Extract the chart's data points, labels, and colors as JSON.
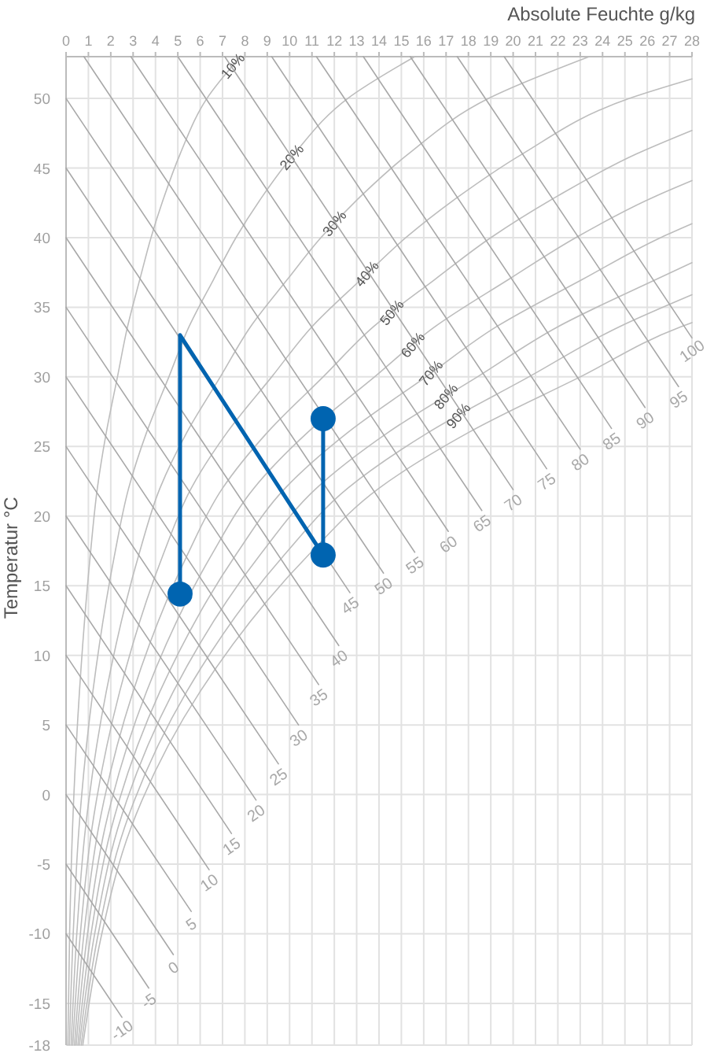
{
  "chart_data": {
    "type": "line",
    "xlabel": "Absolute Feuchte g/kg",
    "ylabel": "Temperatur °C",
    "xlim": [
      0,
      28
    ],
    "ylim": [
      -18,
      53
    ],
    "xticks": [
      0,
      1,
      2,
      3,
      4,
      5,
      6,
      7,
      8,
      9,
      10,
      11,
      12,
      13,
      14,
      15,
      16,
      17,
      18,
      19,
      20,
      21,
      22,
      23,
      24,
      25,
      26,
      27,
      28
    ],
    "yticks": [
      -18,
      -15,
      -10,
      -5,
      0,
      5,
      10,
      15,
      20,
      25,
      30,
      35,
      40,
      45,
      50
    ],
    "grid": true,
    "series": [
      {
        "name": "10%",
        "color": "#bdbdbd",
        "x": [
          0.08,
          0.16,
          0.29,
          0.6,
          1.09,
          1.4,
          1.8,
          2.3,
          2.75,
          3.3,
          3.8,
          4.4,
          5.1,
          6.3,
          7.8
        ],
        "values": [
          -18,
          -10,
          -2.4,
          7.4,
          17.3,
          22,
          26,
          30,
          33.6,
          37,
          40,
          43,
          46,
          50,
          53
        ]
      },
      {
        "name": "20%",
        "color": "#bdbdbd",
        "x": [
          0.15,
          0.32,
          0.58,
          1.2,
          2.18,
          2.8,
          3.6,
          4.6,
          5.5,
          6.6,
          7.6,
          8.8,
          10.2,
          12.6,
          15.6
        ],
        "values": [
          -18,
          -10,
          -2.4,
          7.4,
          17.3,
          22,
          26,
          30,
          33.6,
          37,
          40,
          43,
          46,
          50,
          53
        ]
      },
      {
        "name": "30%",
        "color": "#bdbdbd",
        "x": [
          0.23,
          0.48,
          0.87,
          1.8,
          3.27,
          4.2,
          5.4,
          6.9,
          8.25,
          9.9,
          11.4,
          13.2,
          15.3,
          18.9,
          23.4
        ],
        "values": [
          -18,
          -10,
          -2.4,
          7.4,
          17.3,
          22,
          26,
          30,
          33.6,
          37,
          40,
          43,
          46,
          50,
          53
        ]
      },
      {
        "name": "40%",
        "color": "#bdbdbd",
        "x": [
          0.3,
          0.64,
          1.16,
          2.4,
          4.36,
          5.6,
          7.2,
          9.2,
          11,
          13.2,
          15.2,
          17.6,
          20.4,
          25.2,
          28
        ],
        "values": [
          -18,
          -10,
          -2.4,
          7.4,
          17.3,
          22,
          26,
          30,
          33.6,
          37,
          40,
          43,
          46,
          50,
          51.4
        ]
      },
      {
        "name": "50%",
        "color": "#bdbdbd",
        "x": [
          0.38,
          0.8,
          1.45,
          3,
          5.45,
          7,
          9,
          11.5,
          13.75,
          16.5,
          19,
          22,
          25.5,
          28
        ],
        "values": [
          -18,
          -10,
          -2.4,
          7.4,
          17.3,
          22,
          26,
          30,
          33.6,
          37,
          40,
          43,
          46,
          47.7
        ]
      },
      {
        "name": "60%",
        "color": "#bdbdbd",
        "x": [
          0.45,
          0.96,
          1.74,
          3.6,
          6.54,
          8.4,
          10.8,
          13.8,
          16.5,
          19.8,
          22.8,
          26.4,
          28
        ],
        "values": [
          -18,
          -10,
          -2.4,
          7.4,
          17.3,
          22,
          26,
          30,
          33.6,
          37,
          40,
          43,
          44.1
        ]
      },
      {
        "name": "70%",
        "color": "#bdbdbd",
        "x": [
          0.53,
          1.12,
          2.03,
          4.2,
          7.63,
          9.8,
          12.6,
          16.1,
          19.25,
          23.1,
          26.6,
          28
        ],
        "values": [
          -18,
          -10,
          -2.4,
          7.4,
          17.3,
          22,
          26,
          30,
          33.6,
          37,
          40,
          41
        ]
      },
      {
        "name": "80%",
        "color": "#bdbdbd",
        "x": [
          0.6,
          1.28,
          2.32,
          4.8,
          8.72,
          11.2,
          14.4,
          18.4,
          22,
          26.4,
          28
        ],
        "values": [
          -18,
          -10,
          -2.4,
          7.4,
          17.3,
          22,
          26,
          30,
          33.6,
          37,
          38.2
        ]
      },
      {
        "name": "90%",
        "color": "#bdbdbd",
        "x": [
          0.68,
          1.44,
          2.61,
          5.4,
          9.81,
          12.6,
          16.2,
          20.7,
          24.75,
          28
        ],
        "values": [
          -18,
          -10,
          -2.4,
          7.4,
          17.3,
          22,
          26,
          30,
          33.6,
          35.9
        ]
      },
      {
        "color": "#bdbdbd",
        "x": [
          0.75,
          1.6,
          2.9,
          6,
          10.9,
          14,
          18,
          23,
          27.5,
          28
        ],
        "values": [
          -18,
          -10,
          -2.4,
          7.4,
          17.3,
          22,
          26,
          30,
          33.6,
          33.9
        ]
      },
      {
        "name": "-10",
        "color": "#a8a8a8",
        "x": [
          0,
          2.5
        ],
        "values": [
          -10,
          -16
        ]
      },
      {
        "name": "-5",
        "color": "#a8a8a8",
        "x": [
          0,
          3.7
        ],
        "values": [
          -5,
          -13.9
        ]
      },
      {
        "name": "0",
        "color": "#a8a8a8",
        "x": [
          0,
          4.8
        ],
        "values": [
          0,
          -11.5
        ]
      },
      {
        "name": "5",
        "color": "#a8a8a8",
        "x": [
          0,
          5.6
        ],
        "values": [
          5,
          -8.4
        ]
      },
      {
        "name": "10",
        "color": "#a8a8a8",
        "x": [
          0,
          6.4
        ],
        "values": [
          10,
          -5.4
        ]
      },
      {
        "name": "15",
        "color": "#a8a8a8",
        "x": [
          0,
          7.4
        ],
        "values": [
          15,
          -2.8
        ]
      },
      {
        "name": "20",
        "color": "#a8a8a8",
        "x": [
          0,
          8.5
        ],
        "values": [
          20,
          -0.4
        ]
      },
      {
        "name": "25",
        "color": "#a8a8a8",
        "x": [
          0,
          9.5
        ],
        "values": [
          25,
          2.2
        ]
      },
      {
        "name": "30",
        "color": "#a8a8a8",
        "x": [
          0,
          10.4
        ],
        "values": [
          30,
          5
        ]
      },
      {
        "name": "35",
        "color": "#a8a8a8",
        "x": [
          0,
          11.3
        ],
        "values": [
          35,
          7.9
        ]
      },
      {
        "name": "40",
        "color": "#a8a8a8",
        "x": [
          0,
          12.2
        ],
        "values": [
          40,
          10.7
        ]
      },
      {
        "name": "45",
        "color": "#a8a8a8",
        "x": [
          0,
          12.7
        ],
        "values": [
          45,
          14.5
        ]
      },
      {
        "name": "50",
        "color": "#a8a8a8",
        "x": [
          0,
          14.2
        ],
        "values": [
          50,
          15.9
        ]
      },
      {
        "name": "55",
        "color": "#a8a8a8",
        "x": [
          0.8,
          15.6
        ],
        "values": [
          53,
          17.4
        ]
      },
      {
        "name": "60",
        "color": "#a8a8a8",
        "x": [
          2.9,
          17.1
        ],
        "values": [
          53,
          18.9
        ]
      },
      {
        "name": "65",
        "color": "#a8a8a8",
        "x": [
          5,
          18.6
        ],
        "values": [
          53,
          20.4
        ]
      },
      {
        "name": "70",
        "color": "#a8a8a8",
        "x": [
          7.1,
          20
        ],
        "values": [
          53,
          21.9
        ]
      },
      {
        "name": "75",
        "color": "#a8a8a8",
        "x": [
          9.2,
          21.5
        ],
        "values": [
          53,
          23.4
        ]
      },
      {
        "name": "80",
        "color": "#a8a8a8",
        "x": [
          11.2,
          23
        ],
        "values": [
          53,
          24.8
        ]
      },
      {
        "name": "85",
        "color": "#a8a8a8",
        "x": [
          13.3,
          24.4
        ],
        "values": [
          53,
          26.3
        ]
      },
      {
        "name": "90",
        "color": "#a8a8a8",
        "x": [
          15.4,
          25.9
        ],
        "values": [
          53,
          27.8
        ]
      },
      {
        "name": "95",
        "color": "#a8a8a8",
        "x": [
          17.5,
          27.4
        ],
        "values": [
          53,
          29.3
        ]
      },
      {
        "name": "100",
        "color": "#a8a8a8",
        "x": [
          19.6,
          28
        ],
        "values": [
          53,
          32.8
        ]
      },
      {
        "type": "line",
        "marker": "none",
        "color": "#0064b0",
        "x": [
          5.1,
          5.1,
          11.5,
          11.5
        ],
        "values": [
          14.4,
          33,
          17.2,
          27
        ]
      },
      {
        "type": "scatter",
        "marker": "circle",
        "color": "#0064b0",
        "x": [
          5.1,
          11.5,
          11.5
        ],
        "values": [
          14.4,
          17.2,
          27
        ]
      }
    ]
  }
}
